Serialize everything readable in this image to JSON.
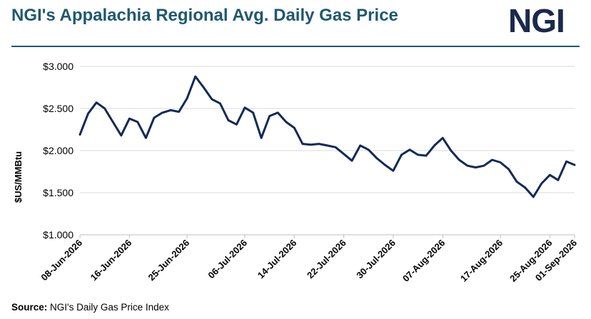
{
  "header": {
    "title": "NGI's Appalachia Regional Avg. Daily Gas Price",
    "logo_text": "NGI"
  },
  "footer": {
    "source_label": "Source:",
    "source_text": " NGI's Daily Gas Price Index"
  },
  "colors": {
    "title": "#1f5870",
    "line": "#112a57",
    "grid": "#d9d9d9",
    "logo": "#1b2a4a"
  },
  "chart_data": {
    "type": "line",
    "title": "NGI's Appalachia Regional Avg. Daily Gas Price",
    "xlabel": "",
    "ylabel": "$US/MMBtu",
    "ylim": [
      1.0,
      3.0
    ],
    "yticks": [
      "$1.000",
      "$1.500",
      "$2.000",
      "$2.500",
      "$3.000"
    ],
    "ytick_values": [
      1.0,
      1.5,
      2.0,
      2.5,
      3.0
    ],
    "xtick_labels": [
      "08-Jun-2026",
      "16-Jun-2026",
      "25-Jun-2026",
      "06-Jul-2026",
      "14-Jul-2026",
      "22-Jul-2026",
      "30-Jul-2026",
      "07-Aug-2026",
      "17-Aug-2026",
      "25-Aug-2026",
      "01-Sep-2026"
    ],
    "xtick_index": [
      0,
      6,
      13,
      20,
      26,
      32,
      38,
      44,
      51,
      57,
      63
    ],
    "grid": true,
    "series": [
      {
        "values": [
          2.19,
          2.44,
          2.57,
          2.5,
          2.34,
          2.18,
          2.38,
          2.34,
          2.15,
          2.39,
          2.45,
          2.48,
          2.46,
          2.62,
          2.88,
          2.75,
          2.61,
          2.56,
          2.36,
          2.31,
          2.51,
          2.45,
          2.15,
          2.41,
          2.45,
          2.34,
          2.27,
          2.08,
          2.07,
          2.08,
          2.06,
          2.04,
          1.96,
          1.88,
          2.06,
          2.01,
          1.91,
          1.83,
          1.76,
          1.95,
          2.01,
          1.95,
          1.94,
          2.06,
          2.15,
          2.0,
          1.89,
          1.82,
          1.8,
          1.82,
          1.89,
          1.86,
          1.78,
          1.63,
          1.56,
          1.45,
          1.61,
          1.71,
          1.65,
          1.87,
          1.83
        ]
      }
    ]
  }
}
